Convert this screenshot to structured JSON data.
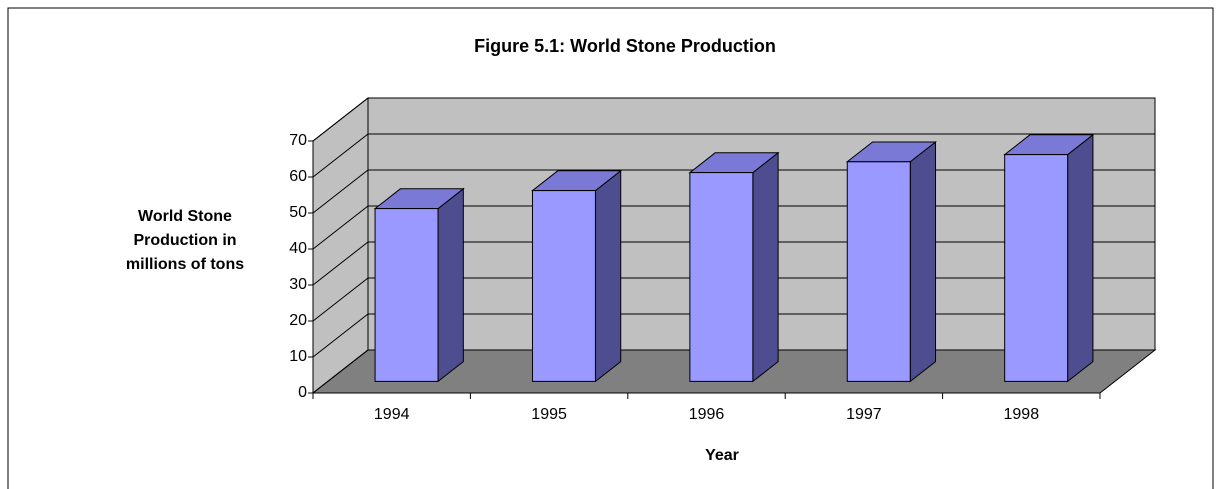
{
  "chart_data": {
    "type": "bar3d",
    "title": "Figure 5.1: World Stone Production",
    "x_label": "Year",
    "y_label": [
      "World Stone",
      "Production in",
      "millions of tons"
    ],
    "categories": [
      "1994",
      "1995",
      "1996",
      "1997",
      "1998"
    ],
    "values": [
      48,
      53,
      58,
      61,
      63
    ],
    "color": "#9999ff",
    "ylim": [
      0,
      70
    ],
    "yticks": [
      0,
      10,
      20,
      30,
      40,
      50,
      60,
      70
    ],
    "grid": true
  }
}
